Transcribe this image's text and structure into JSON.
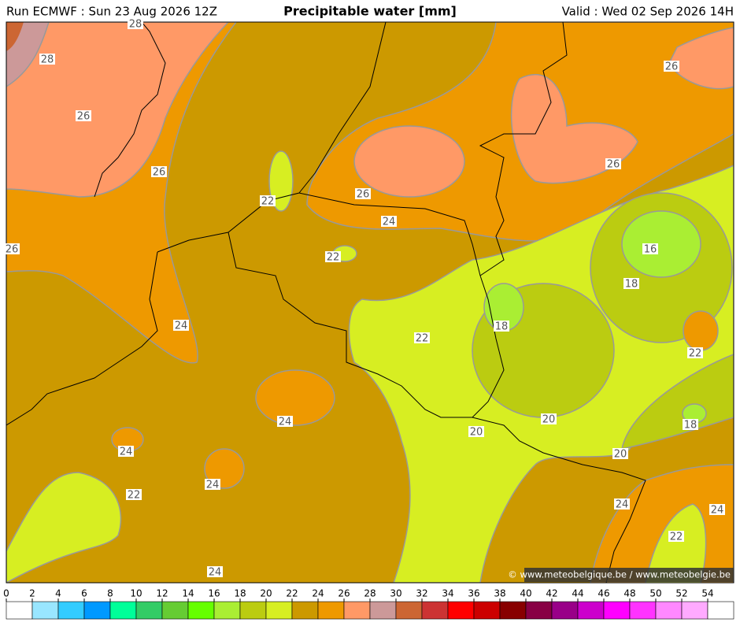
{
  "header": {
    "left": "Run ECMWF : Sun 23 Aug 2026 12Z",
    "title": "Precipitable water [mm]",
    "right": "Valid : Wed 02 Sep 2026 14H"
  },
  "map": {
    "contour_labels": [
      28,
      28,
      26,
      26,
      26,
      22,
      26,
      24,
      22,
      24,
      22,
      18,
      16,
      18,
      26,
      26,
      22,
      24,
      24,
      24,
      22,
      20,
      20,
      18,
      20,
      24,
      24,
      22,
      24
    ]
  },
  "colorbar": {
    "ticks": [
      0,
      2,
      4,
      6,
      8,
      10,
      12,
      14,
      16,
      18,
      20,
      22,
      24,
      26,
      28,
      30,
      32,
      34,
      36,
      38,
      40,
      42,
      44,
      46,
      48,
      50,
      52,
      54
    ],
    "colors": [
      "#ffffff",
      "#99e6ff",
      "#33ccff",
      "#0099ff",
      "#00ff99",
      "#33cc66",
      "#66cc33",
      "#66ff00",
      "#aaee33",
      "#bbcc11",
      "#d7ee22",
      "#cc9900",
      "#ee9900",
      "#ff9966",
      "#cc9999",
      "#cc6633",
      "#cc3333",
      "#ff0000",
      "#cc0000",
      "#880000",
      "#880044",
      "#990088",
      "#cc00cc",
      "#ff00ff",
      "#ff33ff",
      "#ff88ff",
      "#ffaaff",
      "#ffffff"
    ]
  },
  "credit": "© www.meteobelgique.be / www.meteobelgie.be"
}
